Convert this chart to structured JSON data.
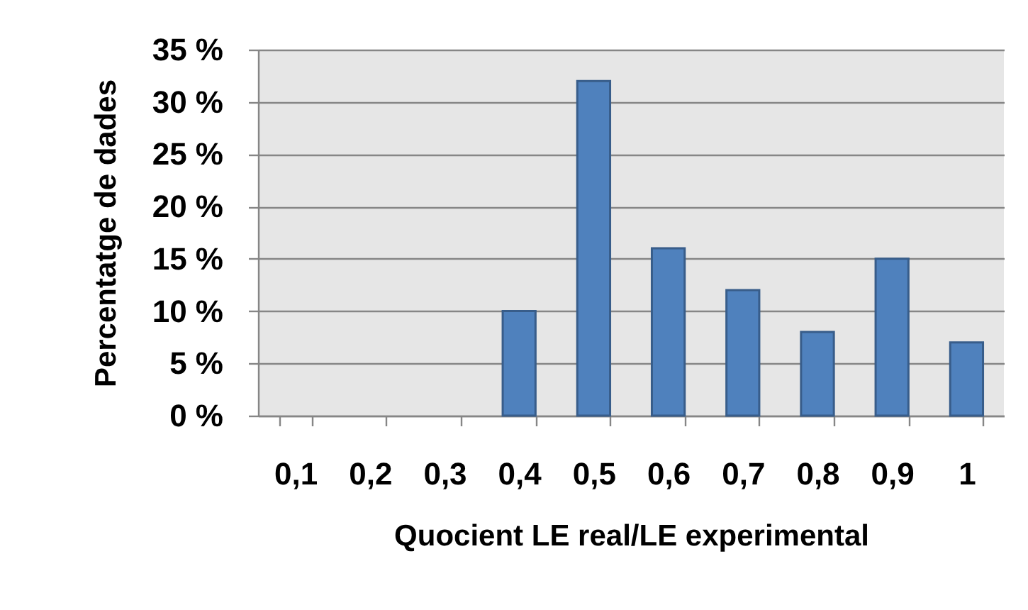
{
  "chart_data": {
    "type": "bar",
    "xlabel": "Quocient LE real/LE experimental",
    "ylabel": "Percentatge de dades",
    "categories": [
      "0,1",
      "0,2",
      "0,3",
      "0,4",
      "0,5",
      "0,6",
      "0,7",
      "0,8",
      "0,9",
      "1"
    ],
    "values": [
      0,
      0,
      0,
      10,
      32,
      16,
      12,
      8,
      15,
      7
    ],
    "color": "#4f81bd",
    "ylim": [
      0,
      35
    ],
    "yticks": [
      {
        "value": 0,
        "label": "0 %"
      },
      {
        "value": 5,
        "label": "5 %"
      },
      {
        "value": 10,
        "label": "10 %"
      },
      {
        "value": 15,
        "label": "15 %"
      },
      {
        "value": 20,
        "label": "20 %"
      },
      {
        "value": 25,
        "label": "25 %"
      },
      {
        "value": 30,
        "label": "30 %"
      },
      {
        "value": 35,
        "label": "35 %"
      }
    ],
    "grid": "y"
  }
}
